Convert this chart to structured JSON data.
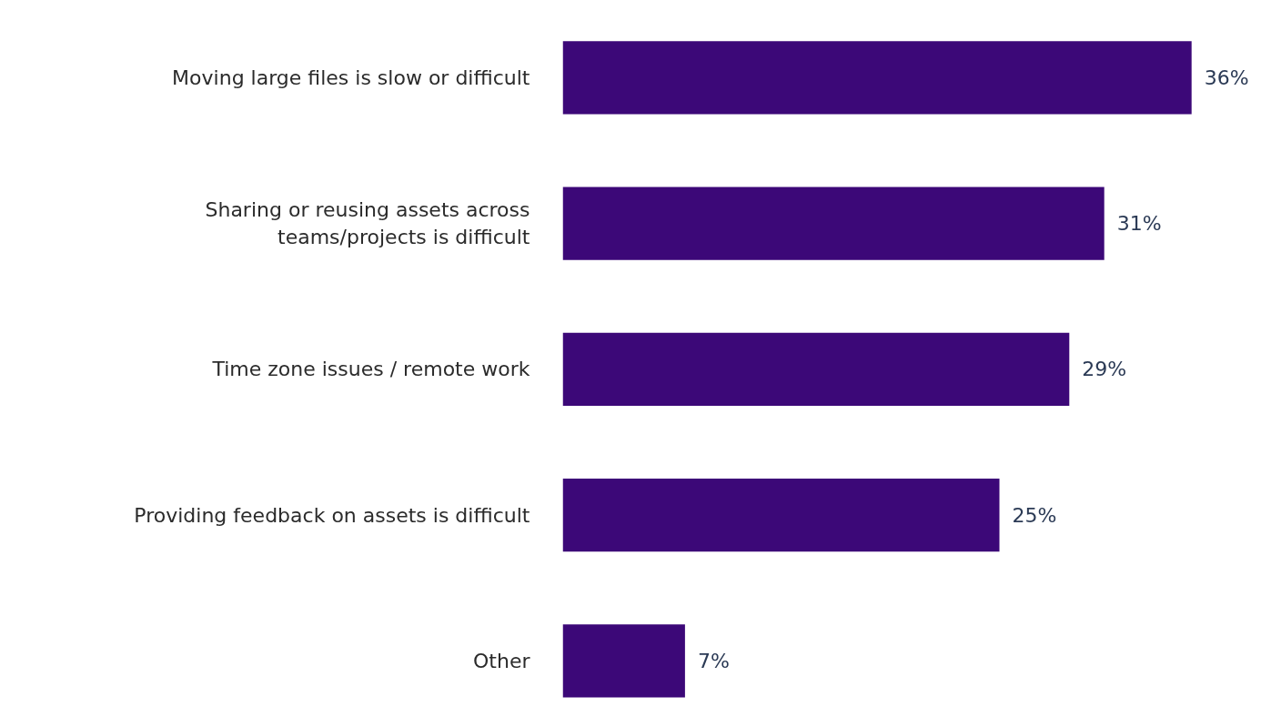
{
  "chart_data": {
    "type": "bar",
    "orientation": "horizontal",
    "categories": [
      "Moving large files is slow or difficult",
      "Sharing or reusing assets across teams/projects is difficult",
      "Time zone issues / remote work",
      "Providing feedback on assets is difficult",
      "Other"
    ],
    "values": [
      36,
      31,
      29,
      25,
      7
    ],
    "value_labels": [
      "36%",
      "31%",
      "29%",
      "25%",
      "7%"
    ],
    "color": "#3c0878",
    "tick_labels": "y"
  }
}
